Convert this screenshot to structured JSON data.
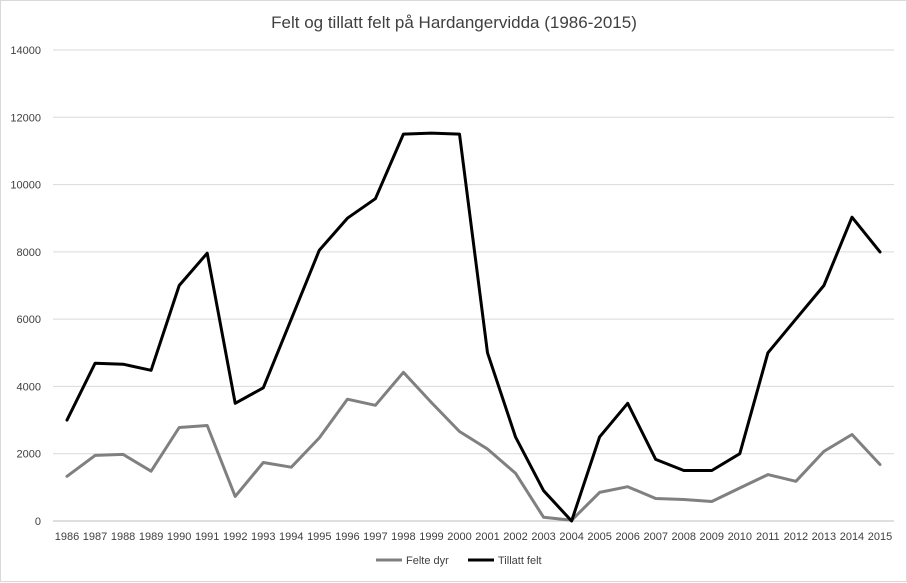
{
  "chart_data": {
    "type": "line",
    "title": "Felt og tillatt  felt på Hardangervidda (1986-2015)",
    "xlabel": "",
    "ylabel": "",
    "ylim": [
      0,
      14000
    ],
    "yticks": [
      0,
      2000,
      4000,
      6000,
      8000,
      10000,
      12000,
      14000
    ],
    "grid": true,
    "legend": "bottom",
    "categories": [
      "1986",
      "1987",
      "1988",
      "1989",
      "1990",
      "1991",
      "1992",
      "1993",
      "1994",
      "1995",
      "1996",
      "1997",
      "1998",
      "1999",
      "2000",
      "2001",
      "2002",
      "2003",
      "2004",
      "2005",
      "2006",
      "2007",
      "2008",
      "2009",
      "2010",
      "2011",
      "2012",
      "2013",
      "2014",
      "2015"
    ],
    "series": [
      {
        "name": "Felte dyr",
        "color": "#808080",
        "values": [
          1330,
          1950,
          1980,
          1480,
          2780,
          2840,
          730,
          1740,
          1600,
          2470,
          3620,
          3440,
          4420,
          3520,
          2660,
          2140,
          1420,
          110,
          20,
          850,
          1020,
          670,
          640,
          580,
          980,
          1380,
          1180,
          2070,
          2570,
          1680
        ]
      },
      {
        "name": "Tillatt felt",
        "color": "#000000",
        "values": [
          3000,
          4690,
          4660,
          4480,
          7000,
          7960,
          3500,
          3960,
          6000,
          8050,
          9000,
          9580,
          11500,
          11530,
          11500,
          5000,
          2500,
          900,
          0,
          2500,
          3500,
          1830,
          1500,
          1500,
          2000,
          5000,
          6000,
          7000,
          9030,
          8000
        ]
      }
    ]
  }
}
